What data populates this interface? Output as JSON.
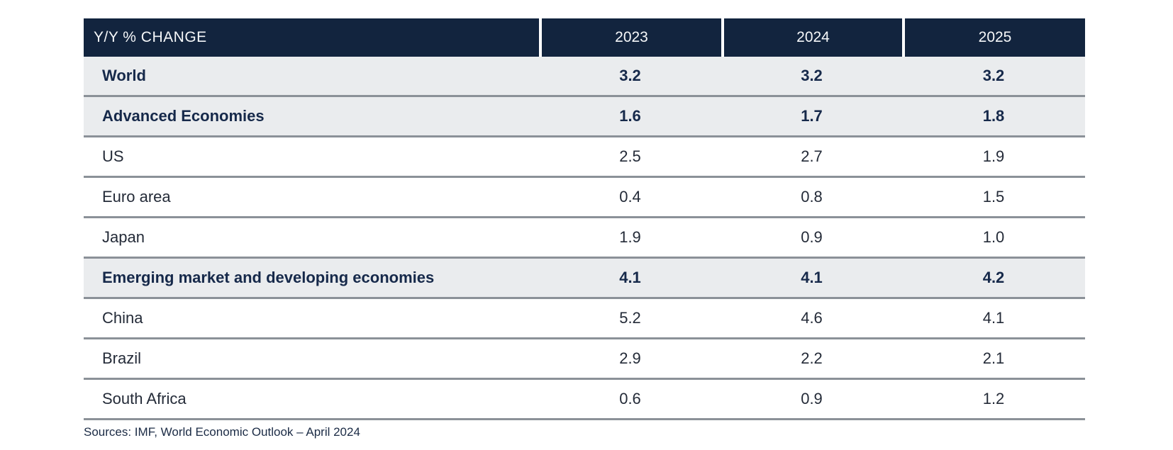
{
  "table": {
    "header": {
      "label": "Y/Y % CHANGE",
      "years": [
        "2023",
        "2024",
        "2025"
      ]
    },
    "rows": [
      {
        "label": "World",
        "values": [
          "3.2",
          "3.2",
          "3.2"
        ],
        "emphasis": true
      },
      {
        "label": "Advanced Economies",
        "values": [
          "1.6",
          "1.7",
          "1.8"
        ],
        "emphasis": true
      },
      {
        "label": "US",
        "values": [
          "2.5",
          "2.7",
          "1.9"
        ],
        "emphasis": false
      },
      {
        "label": "Euro area",
        "values": [
          "0.4",
          "0.8",
          "1.5"
        ],
        "emphasis": false
      },
      {
        "label": "Japan",
        "values": [
          "1.9",
          "0.9",
          "1.0"
        ],
        "emphasis": false
      },
      {
        "label": "Emerging market and developing economies",
        "values": [
          "4.1",
          "4.1",
          "4.2"
        ],
        "emphasis": true
      },
      {
        "label": "China",
        "values": [
          "5.2",
          "4.6",
          "4.1"
        ],
        "emphasis": false
      },
      {
        "label": "Brazil",
        "values": [
          "2.9",
          "2.2",
          "2.1"
        ],
        "emphasis": false
      },
      {
        "label": "South Africa",
        "values": [
          "0.6",
          "0.9",
          "1.2"
        ],
        "emphasis": false
      }
    ]
  },
  "footer": {
    "source": "Sources: IMF, World Economic Outlook – April 2024"
  },
  "colors": {
    "header_bg": "#12243E",
    "header_text": "#F5F7F9",
    "emphasis_row_bg": "#EAECEE",
    "emphasis_text": "#16294A",
    "body_text": "#242B38",
    "divider": "#8B9198"
  },
  "chart_data": {
    "type": "table",
    "title": "Y/Y % CHANGE",
    "columns": [
      "Y/Y % CHANGE",
      "2023",
      "2024",
      "2025"
    ],
    "rows": [
      {
        "label": "World",
        "values": [
          3.2,
          3.2,
          3.2
        ],
        "emphasis": true
      },
      {
        "label": "Advanced Economies",
        "values": [
          1.6,
          1.7,
          1.8
        ],
        "emphasis": true
      },
      {
        "label": "US",
        "values": [
          2.5,
          2.7,
          1.9
        ],
        "emphasis": false
      },
      {
        "label": "Euro area",
        "values": [
          0.4,
          0.8,
          1.5
        ],
        "emphasis": false
      },
      {
        "label": "Japan",
        "values": [
          1.9,
          0.9,
          1.0
        ],
        "emphasis": false
      },
      {
        "label": "Emerging market and developing economies",
        "values": [
          4.1,
          4.1,
          4.2
        ],
        "emphasis": true
      },
      {
        "label": "China",
        "values": [
          5.2,
          4.6,
          4.1
        ],
        "emphasis": false
      },
      {
        "label": "Brazil",
        "values": [
          2.9,
          2.2,
          2.1
        ],
        "emphasis": false
      },
      {
        "label": "South Africa",
        "values": [
          0.6,
          0.9,
          1.2
        ],
        "emphasis": false
      }
    ],
    "source": "Sources: IMF, World Economic Outlook – April 2024"
  }
}
